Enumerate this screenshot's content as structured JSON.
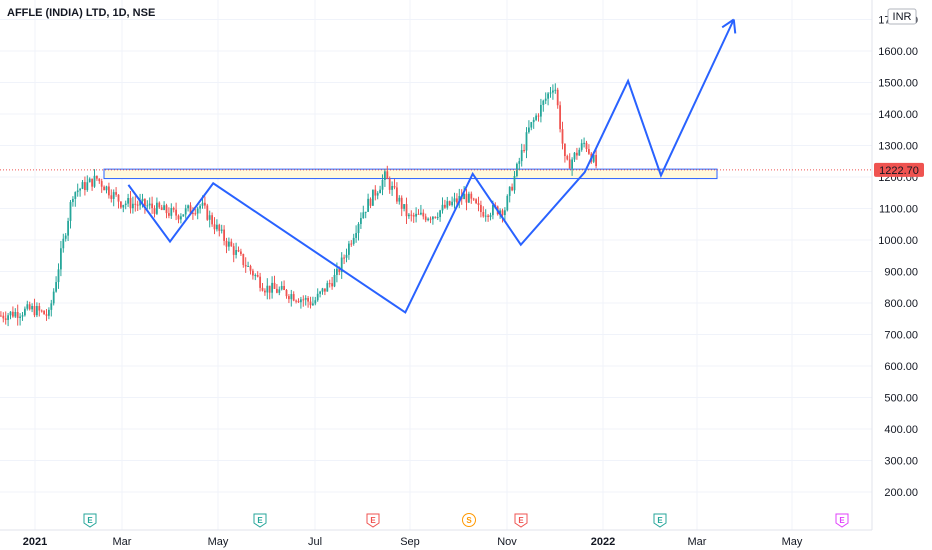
{
  "chart_data": {
    "type": "candlestick",
    "title": "AFFLE (INDIA) LTD, 1D, NSE",
    "currency": "INR",
    "last_price_label": "1222.70",
    "y_ticks": [
      "1700.00",
      "1600.00",
      "1500.00",
      "1400.00",
      "1300.00",
      "1200.00",
      "1100.00",
      "1000.00",
      "900.00",
      "800.00",
      "700.00",
      "600.00",
      "500.00",
      "400.00",
      "300.00",
      "200.00"
    ],
    "x_ticks": [
      "2021",
      "Mar",
      "May",
      "Jul",
      "Sep",
      "Nov",
      "2022",
      "Mar",
      "May"
    ],
    "bold_x_ticks": [
      "2021",
      "2022"
    ],
    "ylim": [
      150,
      1760
    ],
    "grid": true,
    "colors": {
      "up": "#26a69a",
      "down": "#ef5350",
      "pattern": "#2962ff",
      "zone_fill": "#fff9db",
      "zone_border": "#2962ff",
      "price_label_bg": "#ef5350"
    },
    "support_zone": [
      1195,
      1225
    ],
    "events": [
      {
        "label": "E",
        "x": "Feb-01",
        "color": "#26a69a"
      },
      {
        "label": "E",
        "x": "May-24",
        "color": "#26a69a"
      },
      {
        "label": "E",
        "x": "Aug-10",
        "color": "#ef5350"
      },
      {
        "label": "S",
        "x": "Sep-27",
        "color": "#ff9800"
      },
      {
        "label": "E",
        "x": "Oct-22",
        "color": "#ef5350"
      },
      {
        "label": "E",
        "x": "Feb-2022",
        "color": "#26a69a"
      },
      {
        "label": "E",
        "x": "May-2022",
        "color": "#e040fb"
      }
    ],
    "pattern_points": [
      {
        "x": "Mar-05",
        "y": 1175
      },
      {
        "x": "Apr-01",
        "y": 995
      },
      {
        "x": "Apr-28",
        "y": 1180
      },
      {
        "x": "Aug-28",
        "y": 770
      },
      {
        "x": "Oct-10",
        "y": 1210
      },
      {
        "x": "Nov-10",
        "y": 985
      },
      {
        "x": "Dec-20",
        "y": 1215
      },
      {
        "x": "Jan-17",
        "y": 1505
      },
      {
        "x": "Feb-08",
        "y": 1205
      },
      {
        "x": "Mar-24",
        "y": 1700
      }
    ],
    "price_anchors": [
      {
        "d": 0,
        "p": 760
      },
      {
        "d": 20,
        "p": 780
      },
      {
        "d": 30,
        "p": 760
      },
      {
        "d": 45,
        "p": 1150
      },
      {
        "d": 60,
        "p": 1195
      },
      {
        "d": 75,
        "p": 1120
      },
      {
        "d": 90,
        "p": 1110
      },
      {
        "d": 110,
        "p": 1080
      },
      {
        "d": 125,
        "p": 1110
      },
      {
        "d": 140,
        "p": 1000
      },
      {
        "d": 165,
        "p": 850
      },
      {
        "d": 180,
        "p": 830
      },
      {
        "d": 195,
        "p": 800
      },
      {
        "d": 210,
        "p": 890
      },
      {
        "d": 225,
        "p": 1080
      },
      {
        "d": 240,
        "p": 1200
      },
      {
        "d": 255,
        "p": 1070
      },
      {
        "d": 270,
        "p": 1080
      },
      {
        "d": 290,
        "p": 1140
      },
      {
        "d": 300,
        "p": 1090
      },
      {
        "d": 315,
        "p": 1100
      },
      {
        "d": 330,
        "p": 1350
      },
      {
        "d": 346,
        "p": 1500
      },
      {
        "d": 353,
        "p": 1230
      },
      {
        "d": 365,
        "p": 1310
      },
      {
        "d": 373,
        "p": 1225
      }
    ]
  }
}
